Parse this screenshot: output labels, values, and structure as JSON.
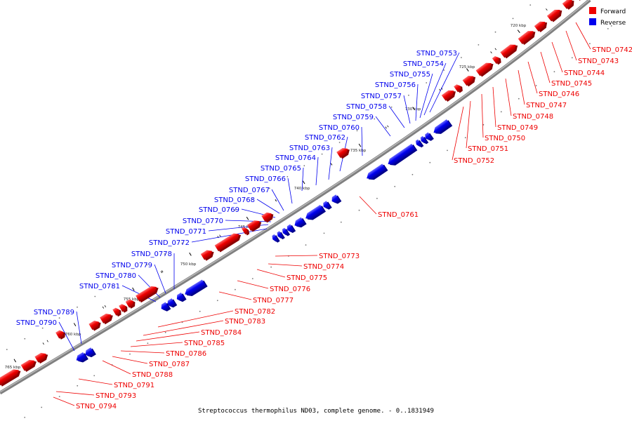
{
  "caption": "Streptococcus thermophilus ND03, complete genome. - 0..1831949",
  "legend": [
    {
      "label": "Forward",
      "color": "#ee0000"
    },
    {
      "label": "Reverse",
      "color": "#0000ee"
    }
  ],
  "colors": {
    "forward": "#ee0000",
    "reverse": "#0000ee",
    "backbone": "#808080"
  },
  "ticks": [
    "720 kbp",
    "725 kbp",
    "730 kbp",
    "735 kbp",
    "740 kbp",
    "745 kbp",
    "750 kbp",
    "755 kbp",
    "760 kbp",
    "765 kbp"
  ],
  "forward_genes": [
    "STND_0742",
    "STND_0743",
    "STND_0744",
    "STND_0745",
    "STND_0746",
    "STND_0747",
    "STND_0748",
    "STND_0749",
    "STND_0750",
    "STND_0751",
    "STND_0752",
    "STND_0761",
    "STND_0773",
    "STND_0774",
    "STND_0775",
    "STND_0776",
    "STND_0777",
    "STND_0782",
    "STND_0783",
    "STND_0784",
    "STND_0785",
    "STND_0786",
    "STND_0787",
    "STND_0788",
    "STND_0791",
    "STND_0793",
    "STND_0794"
  ],
  "reverse_genes": [
    "STND_0753",
    "STND_0754",
    "STND_0755",
    "STND_0756",
    "STND_0757",
    "STND_0758",
    "STND_0759",
    "STND_0760",
    "STND_0762",
    "STND_0763",
    "STND_0764",
    "STND_0765",
    "STND_0766",
    "STND_0767",
    "STND_0768",
    "STND_0769",
    "STND_0770",
    "STND_0771",
    "STND_0772",
    "STND_0778",
    "STND_0779",
    "STND_0780",
    "STND_0781",
    "STND_0789",
    "STND_0790"
  ]
}
